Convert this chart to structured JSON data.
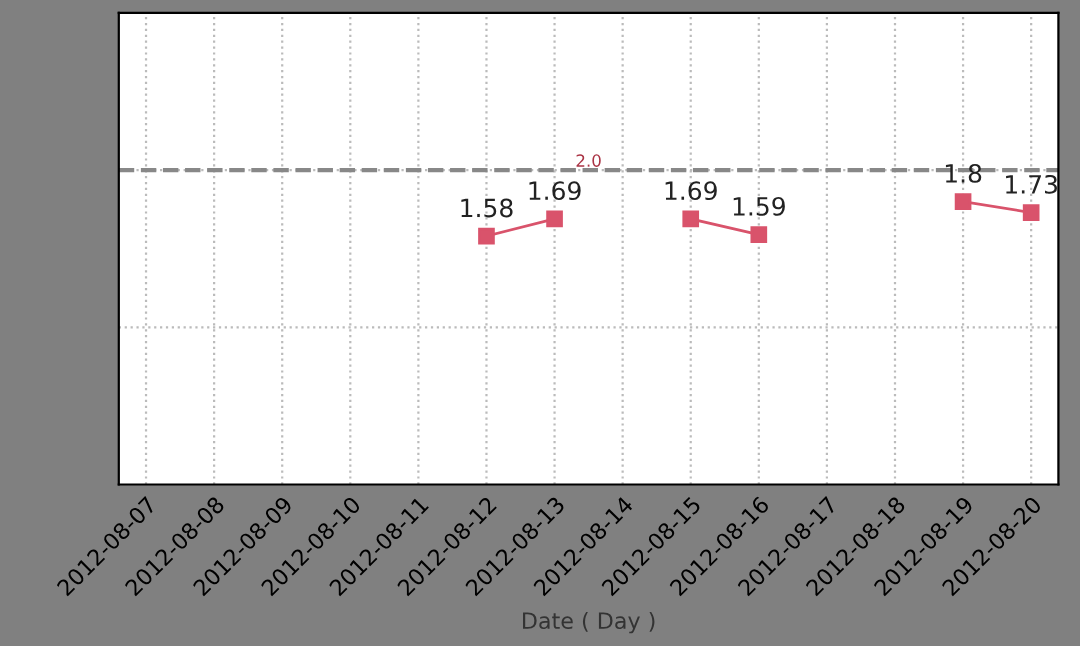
{
  "chart_data": {
    "type": "line",
    "xlabel": "Date ( Day )",
    "categories": [
      "2012-08-07",
      "2012-08-08",
      "2012-08-09",
      "2012-08-10",
      "2012-08-11",
      "2012-08-12",
      "2012-08-13",
      "2012-08-14",
      "2012-08-15",
      "2012-08-16",
      "2012-08-17",
      "2012-08-18",
      "2012-08-19",
      "2012-08-20"
    ],
    "series": [
      {
        "color": "#d9536b",
        "values": [
          null,
          null,
          null,
          null,
          null,
          1.58,
          1.69,
          null,
          1.69,
          1.59,
          null,
          null,
          1.8,
          1.73
        ]
      }
    ],
    "ylim": [
      0,
      3
    ],
    "yticks": [
      {
        "value": 1,
        "label": null
      },
      {
        "value": 2,
        "label": null
      }
    ],
    "tick_labels": "x",
    "grid": true,
    "marker": "square",
    "line_style": "solid",
    "data_labels": true,
    "ref_lines": [
      {
        "axis": "y",
        "value": 2.0,
        "label": "2.0",
        "color": "#888888",
        "line_style": "dashed"
      }
    ]
  }
}
